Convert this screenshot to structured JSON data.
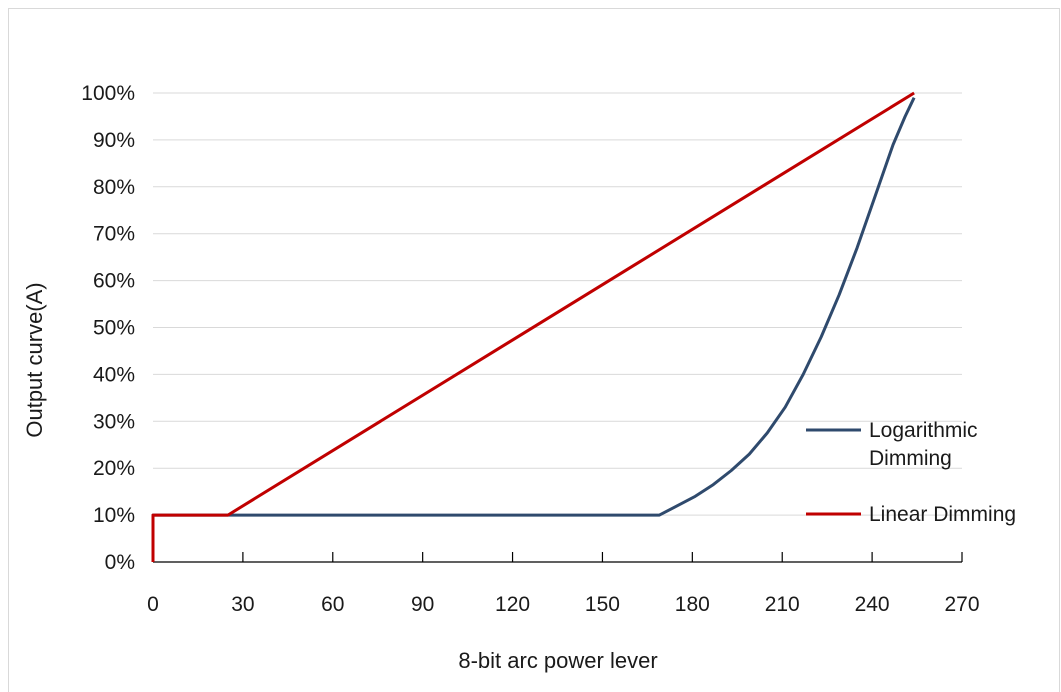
{
  "chart_data": {
    "type": "line",
    "title": "",
    "xlabel": "8-bit arc power lever",
    "ylabel": "Output curve(A)",
    "xlim": [
      0,
      270
    ],
    "ylim": [
      0,
      100
    ],
    "x_ticks": [
      "0",
      "30",
      "60",
      "90",
      "120",
      "150",
      "180",
      "210",
      "240",
      "270"
    ],
    "y_ticks": [
      "0%",
      "10%",
      "20%",
      "30%",
      "40%",
      "50%",
      "60%",
      "70%",
      "80%",
      "90%",
      "100%"
    ],
    "grid": "horizontal",
    "legend_position": "right",
    "series": [
      {
        "name": "Logarithmic Dimming",
        "name_lines": [
          "Logarithmic",
          "Dimming"
        ],
        "color": "#2f4a6d",
        "x": [
          0,
          0,
          169,
          175,
          181,
          187,
          193,
          199,
          205,
          211,
          217,
          223,
          229,
          235,
          241,
          247,
          251,
          254
        ],
        "y": [
          0,
          10,
          10,
          12,
          14,
          16.5,
          19.5,
          23,
          27.5,
          33,
          40,
          48,
          57,
          67,
          78,
          89,
          95,
          99
        ]
      },
      {
        "name": "Linear Dimming",
        "name_lines": [
          "Linear Dimming"
        ],
        "color": "#c00000",
        "x": [
          0,
          0,
          25,
          254
        ],
        "y": [
          0,
          10,
          10,
          100
        ]
      }
    ]
  }
}
